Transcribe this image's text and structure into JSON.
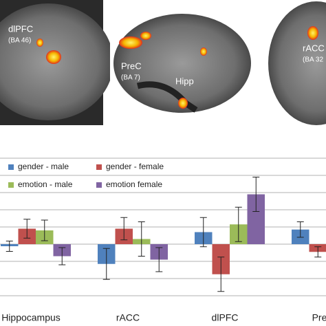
{
  "image_labels": [
    "dlPFC",
    "(BA 46)",
    "PreC",
    "(BA 7)",
    "Hipp",
    "rACC",
    "(BA 32"
  ],
  "chart_data": {
    "type": "bar",
    "categories": [
      "Hippocampus",
      "rACC",
      "dlPFC",
      "Prec"
    ],
    "series": [
      {
        "name": "gender - male",
        "color": "#4f81bd",
        "values": [
          -0.12,
          -1.15,
          0.7,
          0.85
        ],
        "errors": [
          0.3,
          0.9,
          0.85,
          0.45
        ]
      },
      {
        "name": "gender - female",
        "color": "#c0504d",
        "values": [
          0.9,
          0.9,
          -1.75,
          -0.45
        ],
        "errors": [
          0.55,
          0.65,
          1.0,
          0.3
        ]
      },
      {
        "name": "emotion - male",
        "color": "#9bbb59",
        "values": [
          0.8,
          0.3,
          1.15,
          null
        ],
        "errors": [
          0.6,
          1.0,
          1.0,
          null
        ]
      },
      {
        "name": "emotion female",
        "color": "#8064a2",
        "values": [
          -0.7,
          -0.9,
          2.9,
          null
        ],
        "errors": [
          0.5,
          0.7,
          1.0,
          null
        ]
      }
    ],
    "ylim": [
      -3.4,
      5
    ],
    "yticks": [
      -3,
      -2,
      -1,
      0,
      1,
      2,
      3,
      4,
      5
    ],
    "grid": true,
    "legend": "top-left"
  }
}
